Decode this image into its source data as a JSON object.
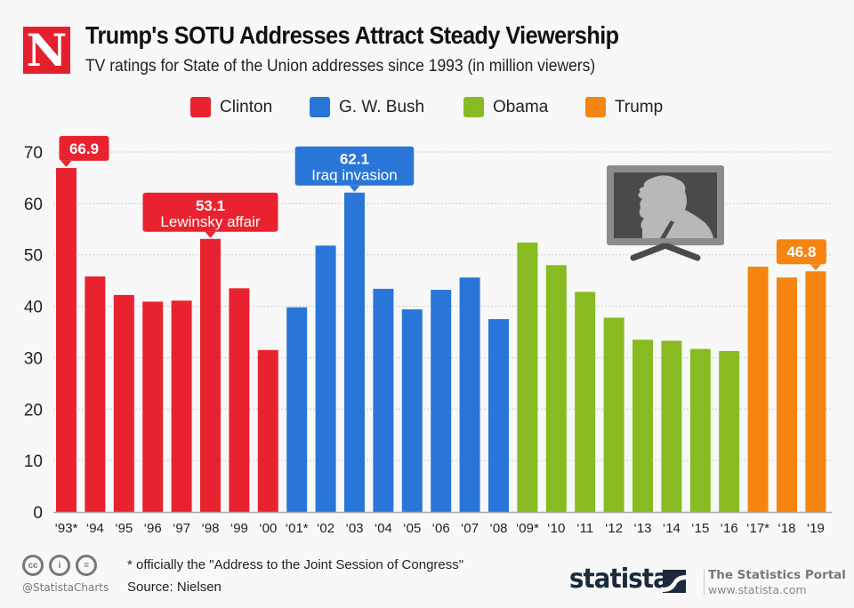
{
  "header": {
    "logo_letter": "N",
    "title": "Trump's SOTU Addresses Attract Steady Viewership",
    "subtitle": "TV ratings for State of the Union addresses since 1993 (in million viewers)"
  },
  "colors": {
    "Clinton": "#e8232f",
    "G. W. Bush": "#2a76d8",
    "Obama": "#88bb22",
    "Trump": "#f58410",
    "grid": "#cccccc",
    "axis_text": "#222222"
  },
  "chart_data": {
    "type": "bar",
    "title": "Trump's SOTU Addresses Attract Steady Viewership",
    "subtitle": "TV ratings for State of the Union addresses since 1993 (in million viewers)",
    "xlabel": "",
    "ylabel": "",
    "ylim": [
      0,
      70
    ],
    "yticks": [
      0,
      10,
      20,
      30,
      40,
      50,
      60,
      70
    ],
    "grid": true,
    "legend": {
      "placement": "top-center",
      "entries": [
        "Clinton",
        "G. W. Bush",
        "Obama",
        "Trump"
      ]
    },
    "categories": [
      "‘93*",
      "‘94",
      "‘95",
      "‘96",
      "‘97",
      "‘98",
      "‘99",
      "‘00",
      "‘01*",
      "‘02",
      "‘03",
      "‘04",
      "‘05",
      "‘06",
      "‘07",
      "‘08",
      "‘09*",
      "‘10",
      "‘11",
      "‘12",
      "‘13",
      "‘14",
      "‘15",
      "‘16",
      "‘17*",
      "‘18",
      "‘19"
    ],
    "values": [
      66.9,
      45.8,
      42.2,
      40.9,
      41.1,
      53.1,
      43.5,
      31.5,
      39.8,
      51.8,
      62.1,
      43.4,
      39.4,
      43.2,
      45.6,
      37.5,
      52.4,
      48.0,
      42.8,
      37.8,
      33.5,
      33.3,
      31.7,
      31.3,
      47.7,
      45.6,
      46.8
    ],
    "president": [
      "Clinton",
      "Clinton",
      "Clinton",
      "Clinton",
      "Clinton",
      "Clinton",
      "Clinton",
      "Clinton",
      "G. W. Bush",
      "G. W. Bush",
      "G. W. Bush",
      "G. W. Bush",
      "G. W. Bush",
      "G. W. Bush",
      "G. W. Bush",
      "G. W. Bush",
      "Obama",
      "Obama",
      "Obama",
      "Obama",
      "Obama",
      "Obama",
      "Obama",
      "Obama",
      "Trump",
      "Trump",
      "Trump"
    ],
    "annotations": [
      {
        "index": 0,
        "value_label": "66.9",
        "text": ""
      },
      {
        "index": 5,
        "value_label": "53.1",
        "text": "Lewinsky affair"
      },
      {
        "index": 10,
        "value_label": "62.1",
        "text": "Iraq invasion"
      },
      {
        "index": 26,
        "value_label": "46.8",
        "text": ""
      }
    ]
  },
  "illustration": {
    "icon": "tv-with-trump-silhouette-icon"
  },
  "footer": {
    "license_icons": [
      "cc-icon",
      "by-icon",
      "nd-icon"
    ],
    "license_text": [
      "cc",
      "i",
      "="
    ],
    "handle": "@StatistaCharts",
    "note": "* officially the \"Address to the Joint Session of Congress\"",
    "source": "Source: Nielsen",
    "brand": "statista",
    "portal_name": "The Statistics Portal",
    "portal_url": "www.statista.com"
  }
}
